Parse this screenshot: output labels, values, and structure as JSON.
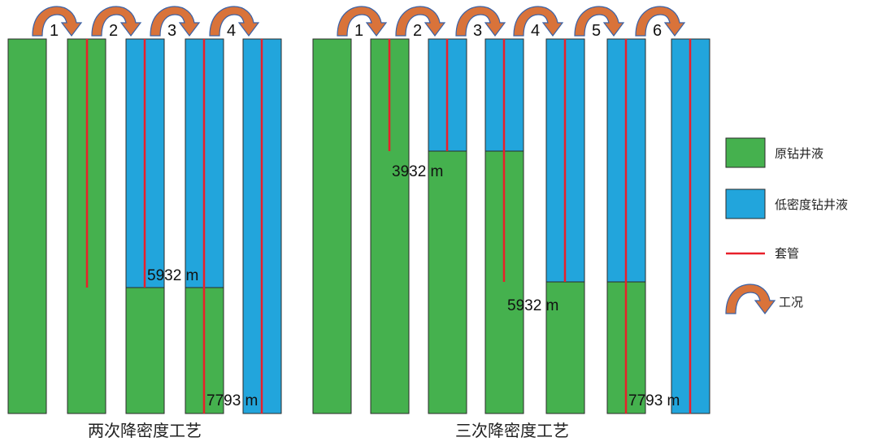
{
  "colors": {
    "original_fluid": "#45B14E",
    "low_density_fluid": "#22A5DC",
    "casing": "#E8202A",
    "arrow_fill": "#D9733A",
    "arrow_stroke": "#7C4B2B",
    "arrow_outline": "#3B62A6"
  },
  "captions": {
    "two_stage": "两次降密度工艺",
    "three_stage": "三次降密度工艺"
  },
  "legend": {
    "original_fluid": "原钻井液",
    "low_density_fluid": "低密度钻井液",
    "casing": "套管",
    "condition": "工况"
  },
  "two_stage": {
    "steps": [
      "1",
      "2",
      "3",
      "4"
    ],
    "depth_labels": [
      "5932 m",
      "7793 m"
    ]
  },
  "three_stage": {
    "steps": [
      "1",
      "2",
      "3",
      "4",
      "5",
      "6"
    ],
    "depth_labels": [
      "3932 m",
      "5932 m",
      "7793 m"
    ]
  }
}
